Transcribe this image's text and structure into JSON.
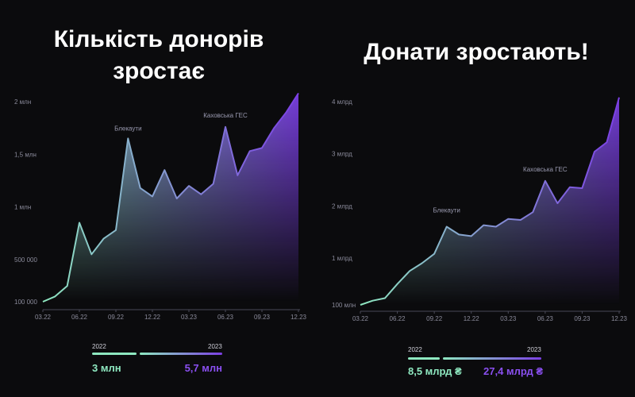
{
  "colors": {
    "start": "#8ee8c0",
    "end": "#7b3fe4",
    "label_start": "#8ee8c0",
    "label_end": "#8a4ff0"
  },
  "left": {
    "title_line1": "Кількість донорів",
    "title_line2": "зростає",
    "legend": {
      "year_from": "2022",
      "year_to": "2023",
      "value_from": "3 млн",
      "value_to": "5,7 млн"
    }
  },
  "right": {
    "title_line1": "Донати зростають!",
    "legend": {
      "year_from": "2022",
      "year_to": "2023",
      "value_from": "8,5 млрд ₴",
      "value_to": "27,4 млрд ₴"
    }
  },
  "chart_data": [
    {
      "type": "area",
      "x": [
        "03.22",
        "04.22",
        "05.22",
        "06.22",
        "07.22",
        "08.22",
        "09.22",
        "10.22",
        "11.22",
        "12.22",
        "01.23",
        "02.23",
        "03.23",
        "04.23",
        "05.23",
        "06.23",
        "07.23",
        "08.23",
        "09.23",
        "10.23",
        "11.23",
        "12.23"
      ],
      "values": [
        100000,
        150000,
        250000,
        850000,
        550000,
        700000,
        780000,
        1650000,
        1180000,
        1100000,
        1350000,
        1080000,
        1200000,
        1120000,
        1220000,
        1760000,
        1300000,
        1530000,
        1560000,
        1750000,
        1900000,
        2080000
      ],
      "yticks": [
        100000,
        500000,
        1000000,
        1500000,
        2000000
      ],
      "ytick_labels": [
        "100 000",
        "500 000",
        "1 млн",
        "1,5 млн",
        "2 млн"
      ],
      "xtick_labels": [
        "03.22",
        "06.22",
        "09.22",
        "12.22",
        "03.23",
        "06.23",
        "09.23",
        "12.23"
      ],
      "ylim": [
        100000,
        2000000
      ],
      "annotations": [
        {
          "x": "10.22",
          "text": "Блекаути"
        },
        {
          "x": "06.23",
          "text": "Каховська ГЕС"
        }
      ]
    },
    {
      "type": "area",
      "x": [
        "03.22",
        "04.22",
        "05.22",
        "06.22",
        "07.22",
        "08.22",
        "09.22",
        "10.22",
        "11.22",
        "12.22",
        "01.23",
        "02.23",
        "03.23",
        "04.23",
        "05.23",
        "06.23",
        "07.23",
        "08.23",
        "09.23",
        "10.23",
        "11.23",
        "12.23"
      ],
      "values": [
        100,
        180,
        230,
        500,
        750,
        900,
        1080,
        1600,
        1450,
        1420,
        1630,
        1600,
        1750,
        1730,
        1880,
        2480,
        2050,
        2360,
        2340,
        3040,
        3220,
        4080
      ],
      "yticks": [
        100,
        1000,
        2000,
        3000,
        4000
      ],
      "ytick_labels": [
        "100 млн",
        "1 млрд",
        "2 млрд",
        "3 млрд",
        "4 млрд"
      ],
      "xtick_labels": [
        "03.22",
        "06.22",
        "09.22",
        "12.22",
        "03.23",
        "06.23",
        "09.23",
        "12.23"
      ],
      "ylim": [
        100,
        4000
      ],
      "annotations": [
        {
          "x": "10.22",
          "text": "Блекаути"
        },
        {
          "x": "06.23",
          "text": "Каховська ГЕС"
        }
      ]
    }
  ]
}
